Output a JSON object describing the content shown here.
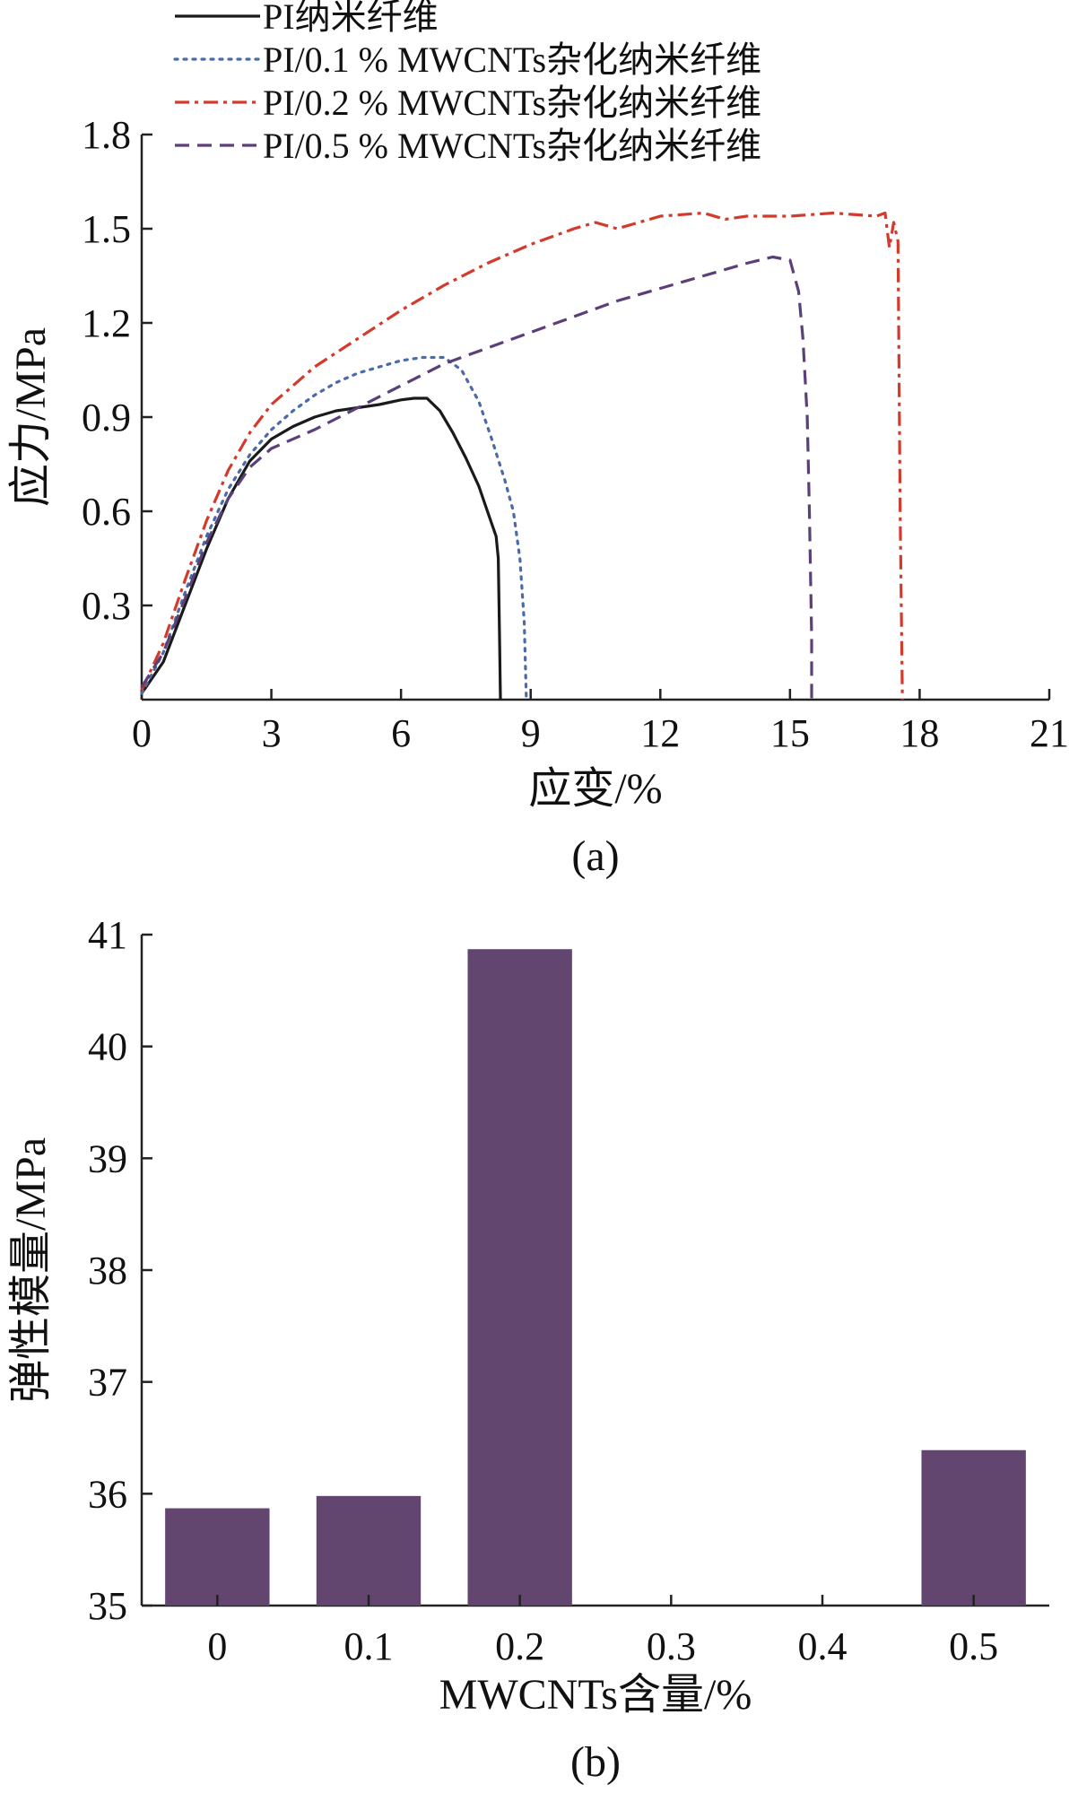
{
  "colors": {
    "pi": "#1a1a1a",
    "pi_01": "#4a6aa8",
    "pi_02": "#d33a2c",
    "pi_05": "#5a3f78",
    "bar": "#62466f"
  },
  "chart_data": [
    {
      "type": "line",
      "panel_label": "(a)",
      "xlabel": "应变/%",
      "ylabel": "应力/MPa",
      "xlim": [
        0,
        21
      ],
      "ylim": [
        0,
        1.8
      ],
      "xticks": [
        0,
        3,
        6,
        9,
        12,
        15,
        18,
        21
      ],
      "yticks": [
        0.3,
        0.6,
        0.9,
        1.2,
        1.5,
        1.8
      ],
      "grid": false,
      "legend_position": "top",
      "series": [
        {
          "name": "PI纳米纤维",
          "style": "solid",
          "color": "#1a1a1a",
          "x": [
            0,
            0.5,
            1,
            1.5,
            2,
            2.5,
            3,
            3.5,
            4,
            4.5,
            5,
            5.5,
            6,
            6.3,
            6.6,
            6.9,
            7.2,
            7.5,
            7.8,
            8.0,
            8.2,
            8.25,
            8.28,
            8.3
          ],
          "y": [
            0.02,
            0.12,
            0.3,
            0.48,
            0.64,
            0.76,
            0.83,
            0.87,
            0.9,
            0.92,
            0.93,
            0.94,
            0.955,
            0.96,
            0.96,
            0.92,
            0.85,
            0.77,
            0.68,
            0.6,
            0.52,
            0.45,
            0.2,
            0.0
          ]
        },
        {
          "name": "PI/0.1 % MWCNTs杂化纳米纤维",
          "style": "dotted",
          "color": "#4a6aa8",
          "x": [
            0,
            0.5,
            1,
            1.5,
            2,
            2.5,
            3,
            3.5,
            4,
            4.5,
            5,
            5.5,
            6,
            6.5,
            7.0,
            7.4,
            7.8,
            8.1,
            8.4,
            8.6,
            8.75,
            8.85,
            8.9
          ],
          "y": [
            0.02,
            0.15,
            0.34,
            0.52,
            0.67,
            0.78,
            0.86,
            0.92,
            0.97,
            1.01,
            1.04,
            1.06,
            1.08,
            1.09,
            1.09,
            1.05,
            0.95,
            0.83,
            0.7,
            0.6,
            0.45,
            0.25,
            0.0
          ]
        },
        {
          "name": "PI/0.2 % MWCNTs杂化纳米纤维",
          "style": "dashdot",
          "color": "#d33a2c",
          "x": [
            0,
            0.5,
            1,
            1.5,
            2,
            2.5,
            3,
            4,
            5,
            6,
            7,
            8,
            9,
            10,
            10.5,
            11,
            12,
            13,
            13.5,
            14,
            15,
            16,
            17,
            17.2,
            17.3,
            17.4,
            17.5,
            17.55,
            17.6
          ],
          "y": [
            0.03,
            0.18,
            0.38,
            0.57,
            0.73,
            0.85,
            0.94,
            1.06,
            1.15,
            1.24,
            1.32,
            1.39,
            1.45,
            1.5,
            1.52,
            1.5,
            1.54,
            1.55,
            1.53,
            1.54,
            1.54,
            1.55,
            1.54,
            1.55,
            1.44,
            1.52,
            1.46,
            0.6,
            0.0
          ]
        },
        {
          "name": "PI/0.5 % MWCNTs杂化纳米纤维",
          "style": "dashed",
          "color": "#5a3f78",
          "x": [
            0,
            0.5,
            1,
            1.5,
            2,
            2.5,
            3,
            4,
            5,
            6,
            7,
            8,
            9,
            10,
            11,
            12,
            13,
            14,
            14.6,
            15.0,
            15.2,
            15.3,
            15.4,
            15.45,
            15.5,
            15.5
          ],
          "y": [
            0.04,
            0.15,
            0.32,
            0.5,
            0.64,
            0.74,
            0.8,
            0.86,
            0.93,
            1.0,
            1.07,
            1.12,
            1.17,
            1.22,
            1.27,
            1.31,
            1.35,
            1.39,
            1.41,
            1.4,
            1.3,
            1.15,
            0.9,
            0.6,
            0.2,
            0.0
          ]
        }
      ]
    },
    {
      "type": "bar",
      "panel_label": "(b)",
      "xlabel": "MWCNTs含量/%",
      "ylabel": "弹性模量/MPa",
      "categories": [
        "0",
        "0.1",
        "0.2",
        "0.3",
        "0.4",
        "0.5"
      ],
      "values": [
        35.87,
        35.98,
        40.87,
        null,
        null,
        36.39
      ],
      "ylim": [
        35,
        41
      ],
      "yticks": [
        35,
        36,
        37,
        38,
        39,
        40,
        41
      ],
      "grid": false
    }
  ]
}
